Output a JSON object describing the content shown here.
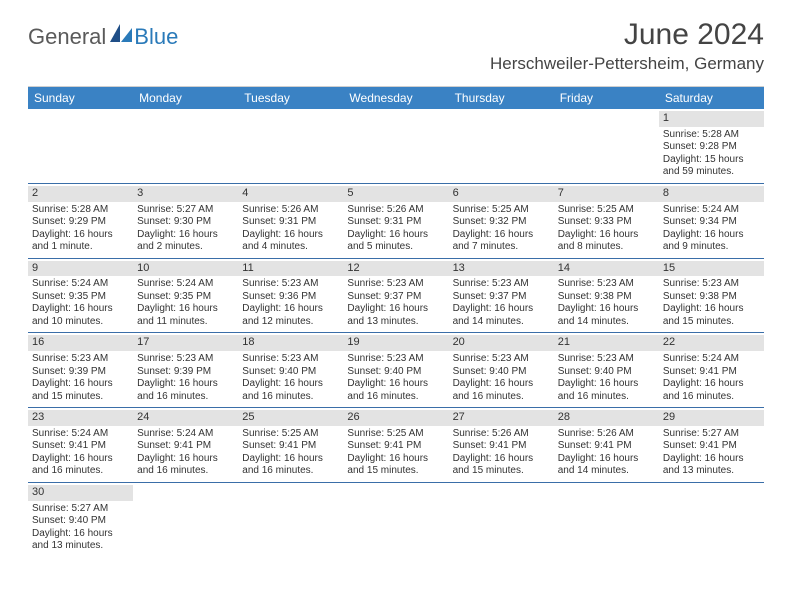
{
  "branding": {
    "logo_text_1": "General",
    "logo_text_2": "Blue",
    "logo_color_gray": "#5a5a5a",
    "logo_color_blue": "#2a7ab9"
  },
  "header": {
    "title": "June 2024",
    "location": "Herschweiler-Pettersheim, Germany"
  },
  "colors": {
    "header_bg": "#3a82c4",
    "header_text": "#ffffff",
    "daynum_bg": "#e3e3e3",
    "row_divider": "#3a6ea8",
    "body_text": "#333333",
    "page_bg": "#ffffff"
  },
  "typography": {
    "title_fontsize": 30,
    "location_fontsize": 17,
    "dow_fontsize": 12,
    "daynum_fontsize": 11,
    "body_fontsize": 10
  },
  "days_of_week": [
    "Sunday",
    "Monday",
    "Tuesday",
    "Wednesday",
    "Thursday",
    "Friday",
    "Saturday"
  ],
  "weeks": [
    [
      null,
      null,
      null,
      null,
      null,
      null,
      {
        "n": "1",
        "sunrise": "Sunrise: 5:28 AM",
        "sunset": "Sunset: 9:28 PM",
        "daylight": "Daylight: 15 hours and 59 minutes."
      }
    ],
    [
      {
        "n": "2",
        "sunrise": "Sunrise: 5:28 AM",
        "sunset": "Sunset: 9:29 PM",
        "daylight": "Daylight: 16 hours and 1 minute."
      },
      {
        "n": "3",
        "sunrise": "Sunrise: 5:27 AM",
        "sunset": "Sunset: 9:30 PM",
        "daylight": "Daylight: 16 hours and 2 minutes."
      },
      {
        "n": "4",
        "sunrise": "Sunrise: 5:26 AM",
        "sunset": "Sunset: 9:31 PM",
        "daylight": "Daylight: 16 hours and 4 minutes."
      },
      {
        "n": "5",
        "sunrise": "Sunrise: 5:26 AM",
        "sunset": "Sunset: 9:31 PM",
        "daylight": "Daylight: 16 hours and 5 minutes."
      },
      {
        "n": "6",
        "sunrise": "Sunrise: 5:25 AM",
        "sunset": "Sunset: 9:32 PM",
        "daylight": "Daylight: 16 hours and 7 minutes."
      },
      {
        "n": "7",
        "sunrise": "Sunrise: 5:25 AM",
        "sunset": "Sunset: 9:33 PM",
        "daylight": "Daylight: 16 hours and 8 minutes."
      },
      {
        "n": "8",
        "sunrise": "Sunrise: 5:24 AM",
        "sunset": "Sunset: 9:34 PM",
        "daylight": "Daylight: 16 hours and 9 minutes."
      }
    ],
    [
      {
        "n": "9",
        "sunrise": "Sunrise: 5:24 AM",
        "sunset": "Sunset: 9:35 PM",
        "daylight": "Daylight: 16 hours and 10 minutes."
      },
      {
        "n": "10",
        "sunrise": "Sunrise: 5:24 AM",
        "sunset": "Sunset: 9:35 PM",
        "daylight": "Daylight: 16 hours and 11 minutes."
      },
      {
        "n": "11",
        "sunrise": "Sunrise: 5:23 AM",
        "sunset": "Sunset: 9:36 PM",
        "daylight": "Daylight: 16 hours and 12 minutes."
      },
      {
        "n": "12",
        "sunrise": "Sunrise: 5:23 AM",
        "sunset": "Sunset: 9:37 PM",
        "daylight": "Daylight: 16 hours and 13 minutes."
      },
      {
        "n": "13",
        "sunrise": "Sunrise: 5:23 AM",
        "sunset": "Sunset: 9:37 PM",
        "daylight": "Daylight: 16 hours and 14 minutes."
      },
      {
        "n": "14",
        "sunrise": "Sunrise: 5:23 AM",
        "sunset": "Sunset: 9:38 PM",
        "daylight": "Daylight: 16 hours and 14 minutes."
      },
      {
        "n": "15",
        "sunrise": "Sunrise: 5:23 AM",
        "sunset": "Sunset: 9:38 PM",
        "daylight": "Daylight: 16 hours and 15 minutes."
      }
    ],
    [
      {
        "n": "16",
        "sunrise": "Sunrise: 5:23 AM",
        "sunset": "Sunset: 9:39 PM",
        "daylight": "Daylight: 16 hours and 15 minutes."
      },
      {
        "n": "17",
        "sunrise": "Sunrise: 5:23 AM",
        "sunset": "Sunset: 9:39 PM",
        "daylight": "Daylight: 16 hours and 16 minutes."
      },
      {
        "n": "18",
        "sunrise": "Sunrise: 5:23 AM",
        "sunset": "Sunset: 9:40 PM",
        "daylight": "Daylight: 16 hours and 16 minutes."
      },
      {
        "n": "19",
        "sunrise": "Sunrise: 5:23 AM",
        "sunset": "Sunset: 9:40 PM",
        "daylight": "Daylight: 16 hours and 16 minutes."
      },
      {
        "n": "20",
        "sunrise": "Sunrise: 5:23 AM",
        "sunset": "Sunset: 9:40 PM",
        "daylight": "Daylight: 16 hours and 16 minutes."
      },
      {
        "n": "21",
        "sunrise": "Sunrise: 5:23 AM",
        "sunset": "Sunset: 9:40 PM",
        "daylight": "Daylight: 16 hours and 16 minutes."
      },
      {
        "n": "22",
        "sunrise": "Sunrise: 5:24 AM",
        "sunset": "Sunset: 9:41 PM",
        "daylight": "Daylight: 16 hours and 16 minutes."
      }
    ],
    [
      {
        "n": "23",
        "sunrise": "Sunrise: 5:24 AM",
        "sunset": "Sunset: 9:41 PM",
        "daylight": "Daylight: 16 hours and 16 minutes."
      },
      {
        "n": "24",
        "sunrise": "Sunrise: 5:24 AM",
        "sunset": "Sunset: 9:41 PM",
        "daylight": "Daylight: 16 hours and 16 minutes."
      },
      {
        "n": "25",
        "sunrise": "Sunrise: 5:25 AM",
        "sunset": "Sunset: 9:41 PM",
        "daylight": "Daylight: 16 hours and 16 minutes."
      },
      {
        "n": "26",
        "sunrise": "Sunrise: 5:25 AM",
        "sunset": "Sunset: 9:41 PM",
        "daylight": "Daylight: 16 hours and 15 minutes."
      },
      {
        "n": "27",
        "sunrise": "Sunrise: 5:26 AM",
        "sunset": "Sunset: 9:41 PM",
        "daylight": "Daylight: 16 hours and 15 minutes."
      },
      {
        "n": "28",
        "sunrise": "Sunrise: 5:26 AM",
        "sunset": "Sunset: 9:41 PM",
        "daylight": "Daylight: 16 hours and 14 minutes."
      },
      {
        "n": "29",
        "sunrise": "Sunrise: 5:27 AM",
        "sunset": "Sunset: 9:41 PM",
        "daylight": "Daylight: 16 hours and 13 minutes."
      }
    ],
    [
      {
        "n": "30",
        "sunrise": "Sunrise: 5:27 AM",
        "sunset": "Sunset: 9:40 PM",
        "daylight": "Daylight: 16 hours and 13 minutes."
      },
      null,
      null,
      null,
      null,
      null,
      null
    ]
  ]
}
